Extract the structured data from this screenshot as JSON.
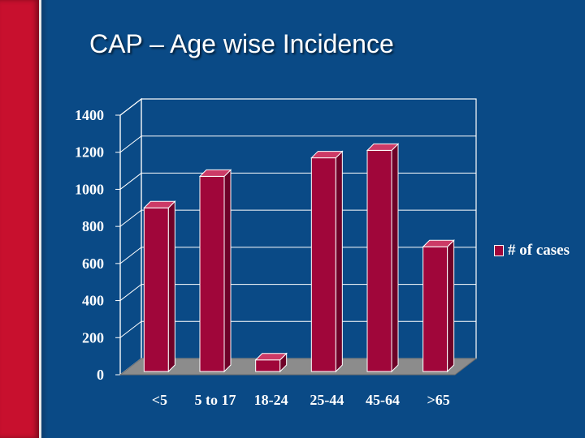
{
  "slide": {
    "title": "CAP – Age wise Incidence"
  },
  "colors": {
    "background": "#0a4a86",
    "accent_band": "#c8102e",
    "bar_front": "#a0063a",
    "bar_top": "#cc3a66",
    "bar_side": "#6e0228",
    "floor": "#8c8c8c"
  },
  "chart_data": {
    "type": "bar",
    "title": "",
    "xlabel": "",
    "ylabel": "",
    "categories": [
      "<5",
      "5 to 17",
      "18-24",
      "25-44",
      "45-64",
      ">65"
    ],
    "series": [
      {
        "name": "# of cases",
        "values": [
          900,
          1070,
          80,
          1170,
          1210,
          690
        ]
      }
    ],
    "ylim": [
      0,
      1400
    ],
    "yticks": [
      "0",
      "200",
      "400",
      "600",
      "800",
      "1000",
      "1200",
      "1400"
    ],
    "grid": true,
    "legend_position": "right",
    "style": "3d"
  }
}
